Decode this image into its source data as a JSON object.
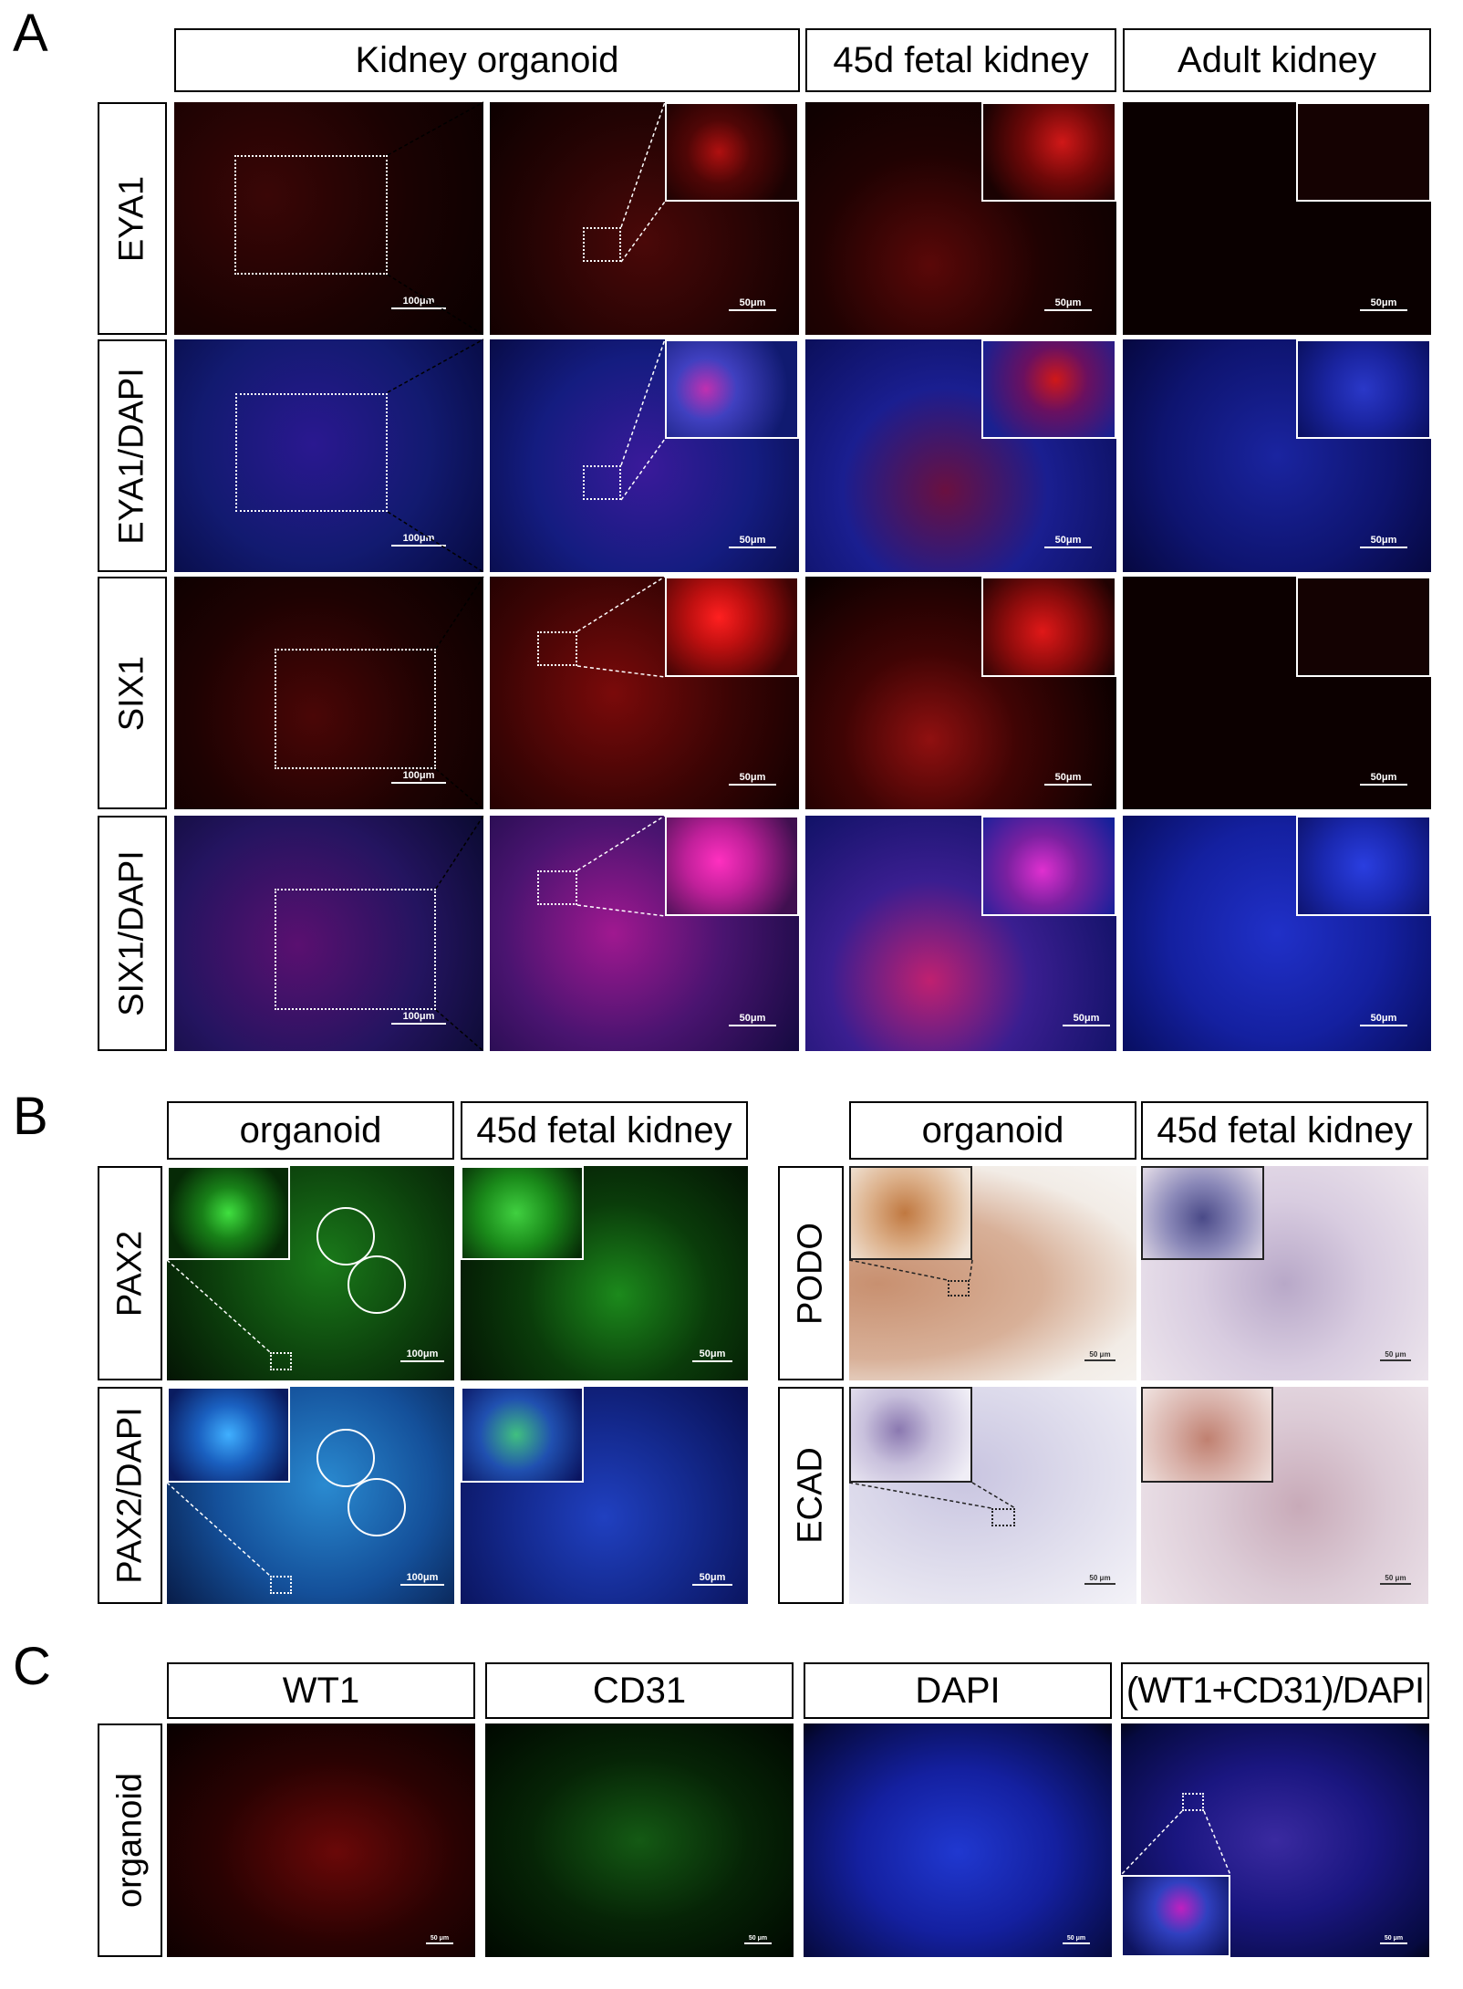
{
  "panel_letters": {
    "a": "A",
    "b": "B",
    "c": "C"
  },
  "section_a": {
    "col_headers": [
      "Kidney organoid",
      "45d fetal kidney",
      "Adult kidney"
    ],
    "row_labels": [
      "EYA1",
      "EYA1/DAPI",
      "SIX1",
      "SIX1/DAPI"
    ],
    "scale_bars": {
      "low_mag": "100μm",
      "high_mag": "50μm"
    }
  },
  "section_b": {
    "left_col_headers": [
      "organoid",
      "45d fetal kidney"
    ],
    "left_row_labels": [
      "PAX2",
      "PAX2/DAPI"
    ],
    "right_col_headers": [
      "organoid",
      "45d fetal kidney"
    ],
    "right_row_labels": [
      "PODO",
      "ECAD"
    ],
    "scale_bars": {
      "low_mag": "100μm",
      "high_mag": "50μm",
      "ihc": "50 μm"
    }
  },
  "section_c": {
    "col_headers": [
      "WT1",
      "CD31",
      "DAPI",
      "(WT1+CD31)/DAPI"
    ],
    "row_label": "organoid",
    "scale_bar": "50 μm"
  },
  "colors": {
    "red_signal": "#d01818",
    "blue_dapi": "#2030c8",
    "magenta_merge": "#e020c0",
    "green_signal": "#20c020",
    "ihc_brown": "#b07040",
    "ihc_purple": "#6a5aa0"
  }
}
